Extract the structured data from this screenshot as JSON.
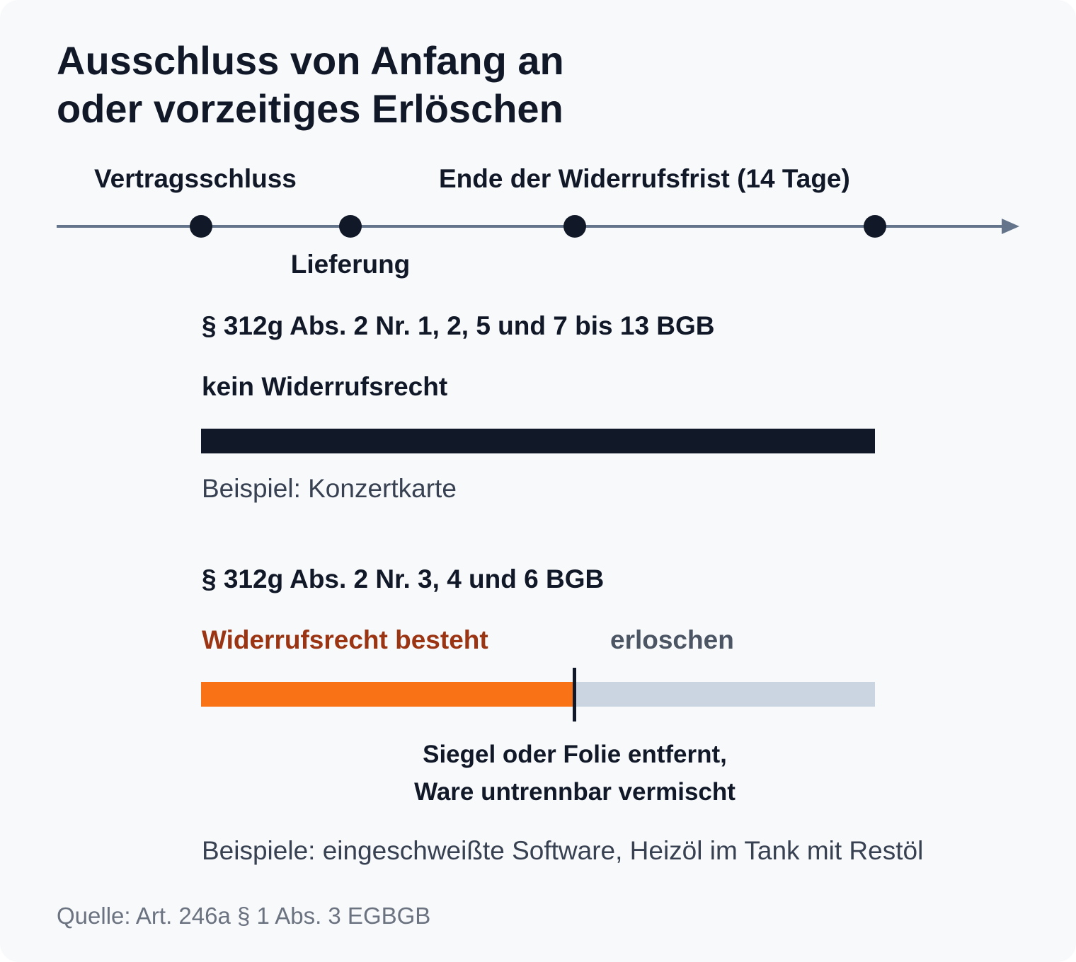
{
  "title": {
    "line1": "Ausschluss von Anfang an",
    "line2": "oder vorzeitiges Erlöschen"
  },
  "timeline": {
    "label_vertragsschluss": "Vertragsschluss",
    "label_ende": "Ende der Widerrufsfrist (14 Tage)",
    "label_lieferung": "Lieferung"
  },
  "case1": {
    "heading": "§ 312g Abs. 2 Nr. 1, 2, 5 und 7 bis 13 BGB",
    "status": "kein Widerrufsrecht",
    "example": "Beispiel: Konzertkarte"
  },
  "case2": {
    "heading": "§ 312g Abs. 2 Nr. 3, 4 und 6 BGB",
    "status_active": "Widerrufsrecht besteht",
    "status_expired": "erloschen",
    "event_line1": "Siegel oder Folie entfernt,",
    "event_line2": "Ware untrennbar vermischt",
    "example": "Beispiele: eingeschweißte Software, Heizöl im Tank mit Restöl"
  },
  "source": "Quelle: Art. 246a § 1 Abs. 3 EGBGB",
  "colors": {
    "dark": "#111827",
    "axis": "#64748b",
    "orange": "#f97316",
    "orange_text": "#9a3412",
    "grey_bar": "#cbd5e1",
    "grey_text": "#4b5563"
  }
}
